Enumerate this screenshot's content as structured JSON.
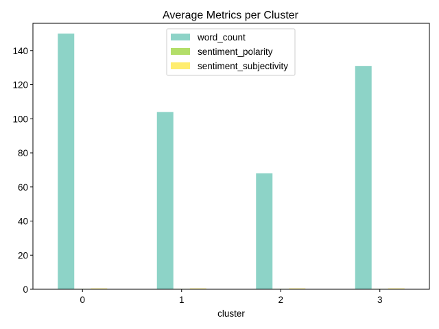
{
  "chart_data": {
    "type": "bar",
    "title": "Average Metrics per Cluster",
    "xlabel": "cluster",
    "ylabel": "",
    "categories": [
      "0",
      "1",
      "2",
      "3"
    ],
    "series": [
      {
        "name": "word_count",
        "color": "#8dd3c7",
        "values": [
          150,
          104,
          68,
          131
        ]
      },
      {
        "name": "sentiment_polarity",
        "color": "#b3de69",
        "values": [
          0.1,
          0.1,
          0.1,
          0.1
        ]
      },
      {
        "name": "sentiment_subjectivity",
        "color": "#ffed6f",
        "values": [
          0.5,
          0.5,
          0.5,
          0.5
        ]
      }
    ],
    "ylim": [
      0,
      156
    ],
    "yticks": [
      0,
      20,
      40,
      60,
      80,
      100,
      120,
      140
    ],
    "grid": false,
    "legend": "upper center"
  }
}
